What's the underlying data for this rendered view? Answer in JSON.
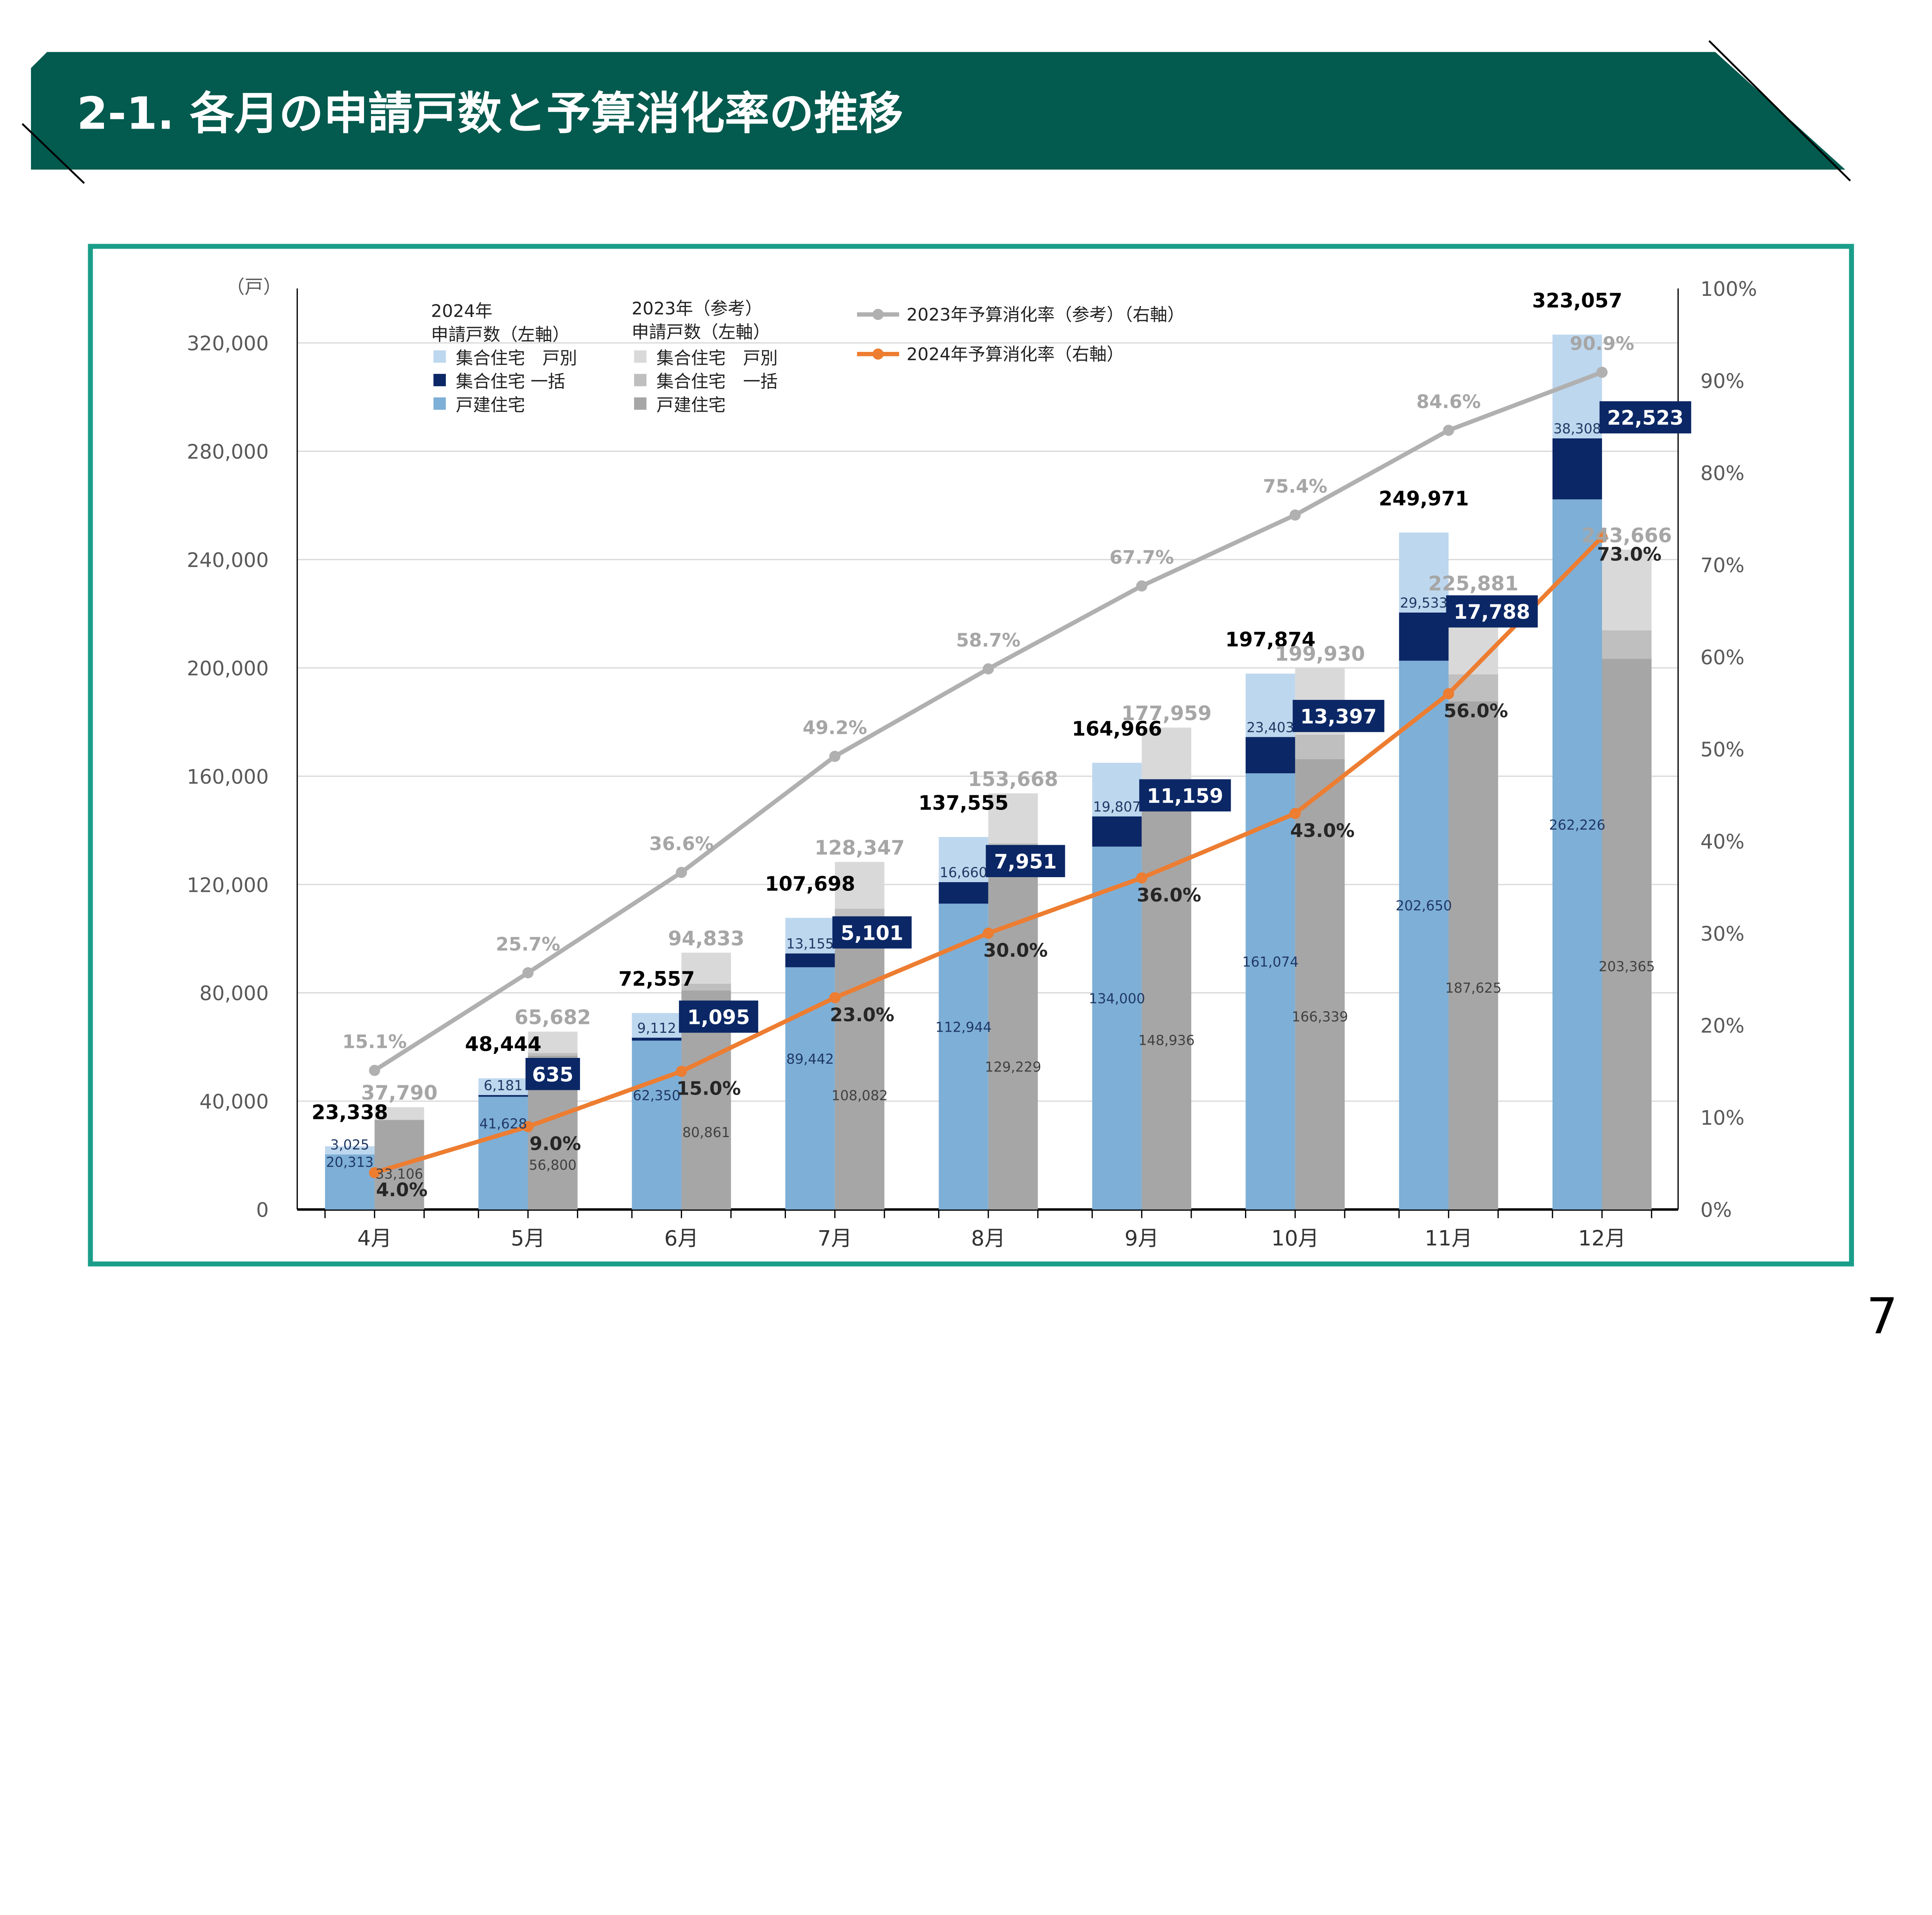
{
  "header": {
    "title": "2-1. 各月の申請戸数と予算消化率の推移",
    "page_number": "7"
  },
  "colors": {
    "header_bg": "#035a4e",
    "frame": "#1a9e8a",
    "y2024_kodate": "#7eafd6",
    "y2024_ikkatsu": "#0b2766",
    "y2024_kobetsu": "#bdd7ee",
    "y2023_kodate": "#a6a6a6",
    "y2023_ikkatsu": "#bfbfbf",
    "y2023_kobetsu": "#d9d9d9",
    "rate_2023": "#b0b0b0",
    "rate_2024": "#ed7d31"
  },
  "chart_data": {
    "type": "bar",
    "subtype": "stacked-grouped bar with line overlay (secondary axis)",
    "categories": [
      "4月",
      "5月",
      "6月",
      "7月",
      "8月",
      "9月",
      "10月",
      "11月",
      "12月"
    ],
    "y_unit_label": "（戸）",
    "ylim": [
      0,
      320000
    ],
    "yticks": [
      "0",
      "40,000",
      "80,000",
      "120,000",
      "160,000",
      "200,000",
      "240,000",
      "280,000",
      "320,000"
    ],
    "y2lim": [
      0,
      100
    ],
    "y2ticks": [
      "0%",
      "10%",
      "20%",
      "30%",
      "40%",
      "50%",
      "60%",
      "70%",
      "80%",
      "90%",
      "100%"
    ],
    "grid": true,
    "legend": {
      "group_2024_title": [
        "2024年",
        "申請戸数（左軸）"
      ],
      "group_2023_title": [
        "2023年（参考）",
        "申請戸数（左軸）"
      ],
      "kobetsu": "集合住宅　戸別",
      "ikkatsu": "集合住宅 一括",
      "ikkatsu_2023": "集合住宅　一括",
      "kodate": "戸建住宅",
      "rate_2023": "2023年予算消化率（参考）（右軸）",
      "rate_2024": "2024年予算消化率（右軸）"
    },
    "series": [
      {
        "name": "2024年 戸建住宅",
        "values": [
          20313,
          41628,
          62350,
          89442,
          112944,
          134000,
          161074,
          202650,
          262226
        ]
      },
      {
        "name": "2024年 集合住宅 一括",
        "values": [
          0,
          635,
          1095,
          5101,
          7951,
          11159,
          13397,
          17788,
          22523
        ]
      },
      {
        "name": "2024年 集合住宅 戸別",
        "values": [
          3025,
          6181,
          9112,
          13155,
          16660,
          19807,
          23403,
          29533,
          38308
        ]
      },
      {
        "name": "2024年 合計",
        "values": [
          23338,
          48444,
          72557,
          107698,
          137555,
          164966,
          197874,
          249971,
          323057
        ]
      },
      {
        "name": "2023年 戸建住宅",
        "values": [
          33106,
          56800,
          80861,
          108082,
          129229,
          148936,
          166339,
          187625,
          203365
        ]
      },
      {
        "name": "2023年 集合住宅 一括 (estimated, unlabeled)",
        "values": [
          0,
          1000,
          2500,
          3000,
          6000,
          7500,
          9000,
          10000,
          10500
        ]
      },
      {
        "name": "2023年 合計",
        "values": [
          37790,
          65682,
          94833,
          128347,
          153668,
          177959,
          199930,
          225881,
          243666
        ]
      },
      {
        "name": "2023年予算消化率（参考）（右軸）",
        "values": [
          15.1,
          25.7,
          36.6,
          49.2,
          58.7,
          67.7,
          75.4,
          84.6,
          90.9
        ],
        "labels": [
          "15.1%",
          "25.7%",
          "36.6%",
          "49.2%",
          "58.7%",
          "67.7%",
          "75.4%",
          "84.6%",
          "90.9%"
        ]
      },
      {
        "name": "2024年予算消化率（右軸）",
        "values": [
          4.0,
          9.0,
          15.0,
          23.0,
          30.0,
          36.0,
          43.0,
          56.0,
          73.0
        ],
        "labels": [
          "4.0%",
          "9.0%",
          "15.0%",
          "23.0%",
          "30.0%",
          "36.0%",
          "43.0%",
          "56.0%",
          "73.0%"
        ]
      }
    ],
    "value_labels": {
      "kodate_2024": [
        "20,313",
        "41,628",
        "62,350",
        "89,442",
        "112,944",
        "134,000",
        "161,074",
        "202,650",
        "262,226"
      ],
      "ikkatsu_2024": [
        "",
        "635",
        "1,095",
        "5,101",
        "7,951",
        "11,159",
        "13,397",
        "17,788",
        "22,523"
      ],
      "kobetsu_2024": [
        "3,025",
        "6,181",
        "9,112",
        "13,155",
        "16,660",
        "19,807",
        "23,403",
        "29,533",
        "38,308"
      ],
      "total_2024": [
        "23,338",
        "48,444",
        "72,557",
        "107,698",
        "137,555",
        "164,966",
        "197,874",
        "249,971",
        "323,057"
      ],
      "kodate_2023": [
        "33,106",
        "56,800",
        "80,861",
        "108,082",
        "129,229",
        "148,936",
        "166,339",
        "187,625",
        "203,365"
      ],
      "total_2023": [
        "37,790",
        "65,682",
        "94,833",
        "128,347",
        "153,668",
        "177,959",
        "199,930",
        "225,881",
        "243,666"
      ]
    }
  }
}
